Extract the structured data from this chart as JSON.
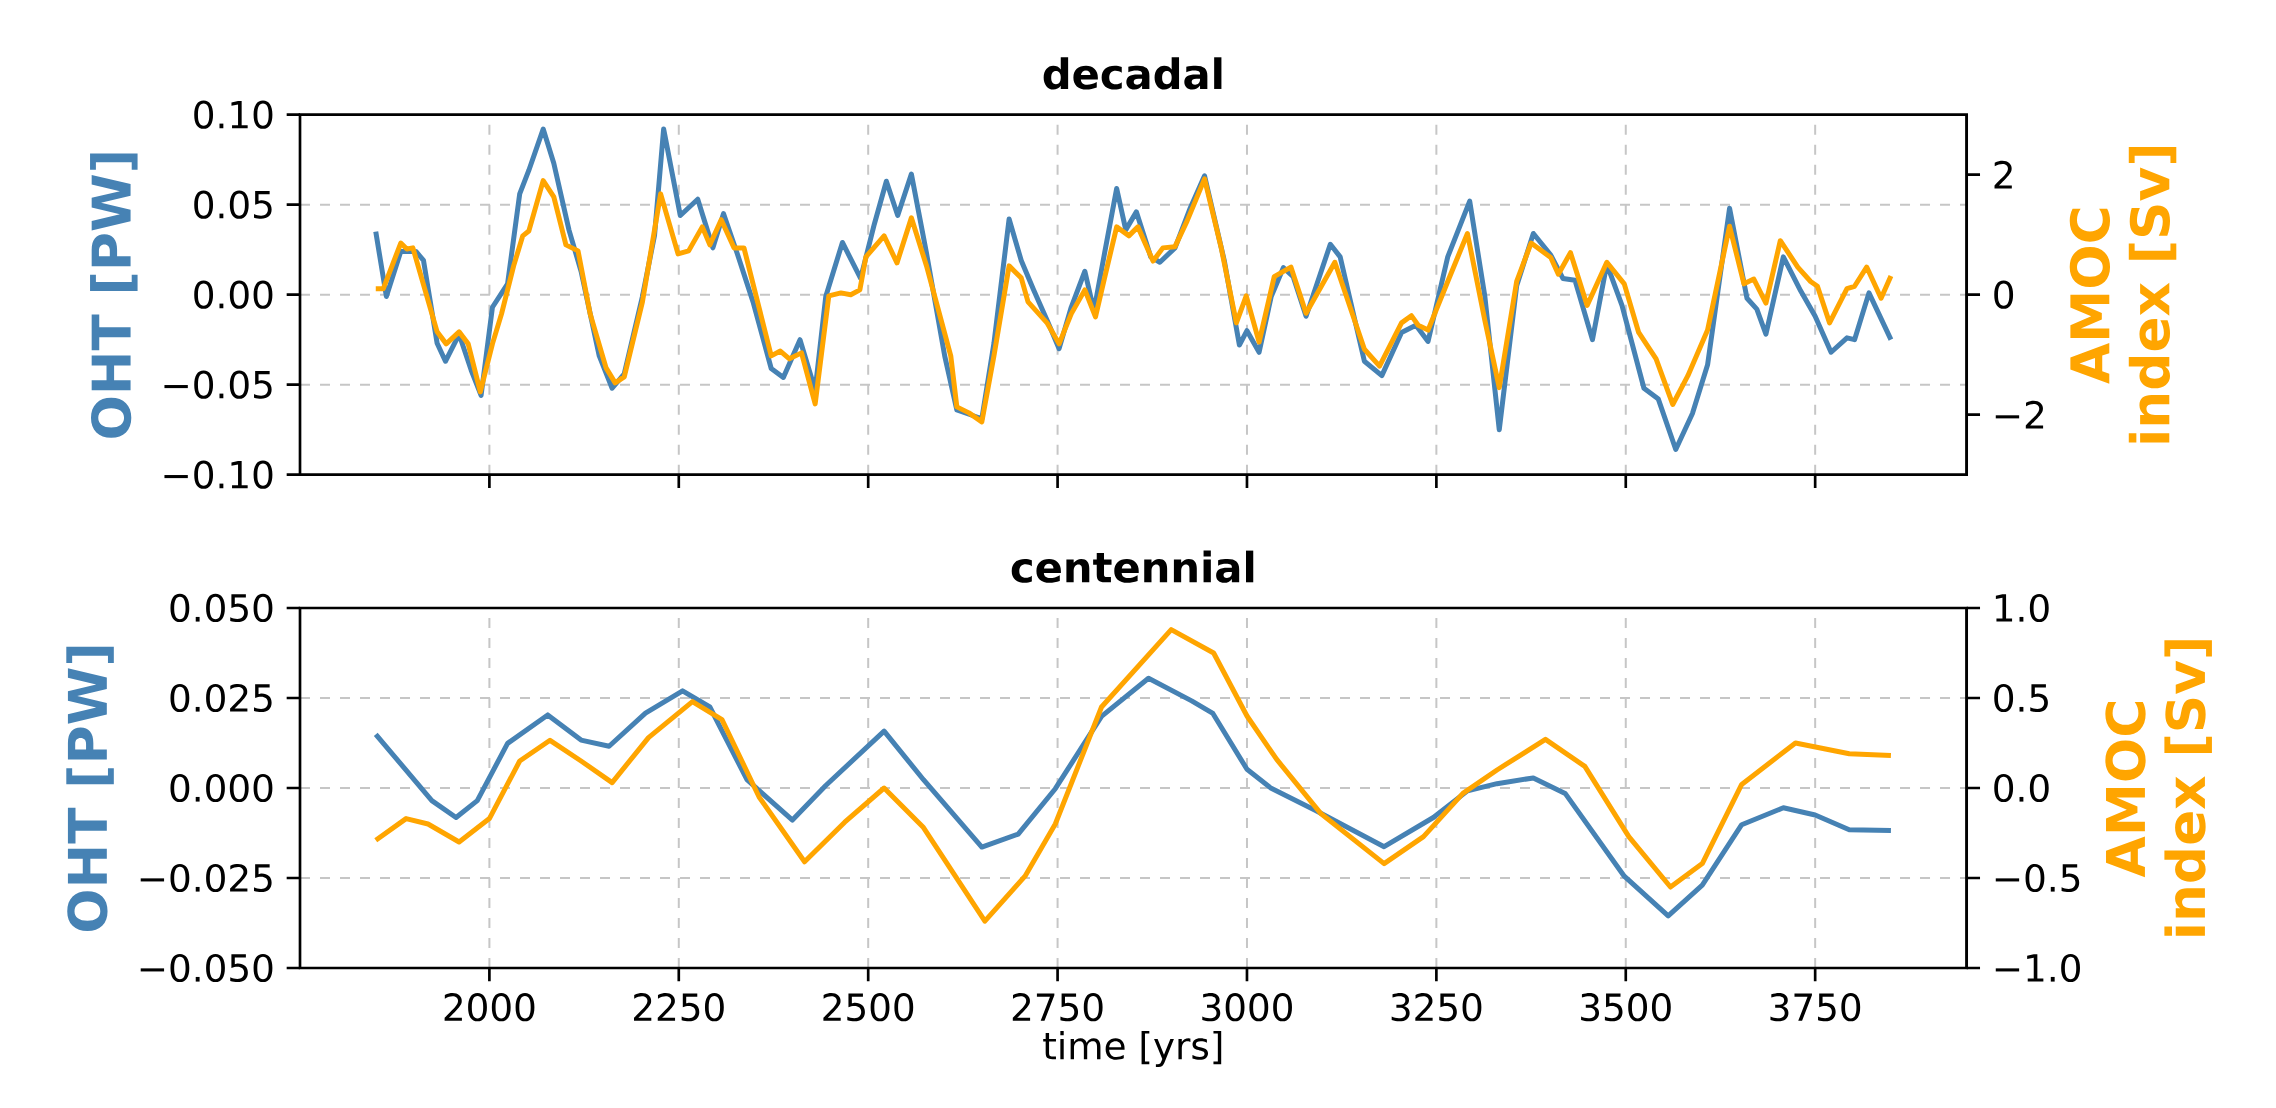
{
  "chart_data": [
    {
      "type": "line",
      "title": "decadal",
      "ylabel": "OHT [PW]",
      "y2label": "AMOC index [Sv]",
      "xlim": [
        1750,
        3950
      ],
      "xticks": [
        2000,
        2250,
        2500,
        2750,
        3000,
        3250,
        3500,
        3750
      ],
      "ylim": [
        -0.1,
        0.1
      ],
      "yticks": [
        {
          "value": -0.1,
          "label": "−0.10"
        },
        {
          "value": -0.05,
          "label": "−0.05"
        },
        {
          "value": 0,
          "label": "0.00"
        },
        {
          "value": 0.05,
          "label": "0.05"
        },
        {
          "value": 0.1,
          "label": "0.10"
        }
      ],
      "y2lim": [
        -3,
        3
      ],
      "y2ticks": [
        {
          "value": -2,
          "label": "−2"
        },
        0,
        2
      ],
      "grid": true,
      "tick_labels": "y",
      "series": [
        {
          "color": "#4682b4",
          "x": [
            1850,
            1864,
            1883,
            1903,
            1913,
            1931,
            1942,
            1960,
            1976,
            1989,
            2004,
            2024,
            2040,
            2052,
            2071,
            2085,
            2105,
            2121,
            2145,
            2162,
            2178,
            2202,
            2218,
            2230,
            2252,
            2275,
            2295,
            2309,
            2327,
            2348,
            2372,
            2388,
            2410,
            2430,
            2444,
            2466,
            2490,
            2508,
            2524,
            2539,
            2557,
            2577,
            2601,
            2617,
            2637,
            2650,
            2666,
            2686,
            2702,
            2718,
            2738,
            2752,
            2768,
            2786,
            2798,
            2812,
            2828,
            2840,
            2854,
            2873,
            2885,
            2905,
            2925,
            2944,
            2970,
            2990,
            3000,
            3016,
            3032,
            3048,
            3061,
            3078,
            3110,
            3123,
            3155,
            3178,
            3204,
            3223,
            3239,
            3265,
            3294,
            3314,
            3333,
            3356,
            3378,
            3401,
            3417,
            3433,
            3456,
            3475,
            3495,
            3524,
            3543,
            3566,
            3588,
            3608,
            3637,
            3660,
            3673,
            3685,
            3708,
            3731,
            3750,
            3771,
            3792,
            3802,
            3821,
            3850
          ],
          "values": [
            0.035,
            -0.001,
            0.024,
            0.024,
            0.019,
            -0.027,
            -0.037,
            -0.022,
            -0.042,
            -0.056,
            -0.007,
            0.006,
            0.056,
            0.069,
            0.092,
            0.073,
            0.036,
            0.013,
            -0.034,
            -0.052,
            -0.044,
            -0.001,
            0.033,
            0.092,
            0.044,
            0.053,
            0.026,
            0.045,
            0.023,
            -0.004,
            -0.041,
            -0.046,
            -0.025,
            -0.053,
            -0.001,
            0.029,
            0.009,
            0.039,
            0.063,
            0.044,
            0.067,
            0.023,
            -0.034,
            -0.064,
            -0.067,
            -0.069,
            -0.027,
            0.042,
            0.019,
            0.003,
            -0.016,
            -0.03,
            -0.007,
            0.013,
            -0.009,
            0.023,
            0.059,
            0.036,
            0.046,
            0.021,
            0.018,
            0.026,
            0.048,
            0.066,
            0.019,
            -0.028,
            -0.02,
            -0.032,
            -0.001,
            0.015,
            0.01,
            -0.012,
            0.028,
            0.021,
            -0.037,
            -0.045,
            -0.021,
            -0.017,
            -0.026,
            0.021,
            0.052,
            -0.001,
            -0.075,
            0.005,
            0.034,
            0.022,
            0.009,
            0.008,
            -0.025,
            0.017,
            -0.006,
            -0.052,
            -0.058,
            -0.086,
            -0.066,
            -0.039,
            0.048,
            -0.002,
            -0.008,
            -0.022,
            0.021,
            0.002,
            -0.012,
            -0.032,
            -0.024,
            -0.025,
            0.001,
            -0.025
          ]
        },
        {
          "color": "#ffa500",
          "axis": "y2",
          "x": [
            1850,
            1860,
            1883,
            1891,
            1899,
            1931,
            1943,
            1960,
            1972,
            1988,
            2004,
            2016,
            2032,
            2044,
            2052,
            2071,
            2085,
            2101,
            2117,
            2133,
            2154,
            2166,
            2178,
            2202,
            2226,
            2249,
            2263,
            2281,
            2291,
            2306,
            2323,
            2336,
            2356,
            2372,
            2384,
            2396,
            2412,
            2430,
            2448,
            2464,
            2477,
            2489,
            2497,
            2521,
            2538,
            2557,
            2577,
            2609,
            2617,
            2633,
            2650,
            2666,
            2686,
            2702,
            2711,
            2736,
            2752,
            2768,
            2786,
            2800,
            2812,
            2828,
            2844,
            2856,
            2876,
            2889,
            2905,
            2921,
            2944,
            2966,
            2986,
            2999,
            3016,
            3036,
            3058,
            3078,
            3116,
            3155,
            3175,
            3204,
            3217,
            3226,
            3239,
            3265,
            3291,
            3314,
            3333,
            3356,
            3375,
            3401,
            3411,
            3427,
            3449,
            3475,
            3498,
            3517,
            3540,
            3562,
            3582,
            3608,
            3637,
            3656,
            3669,
            3685,
            3704,
            3727,
            3744,
            3753,
            3769,
            3792,
            3802,
            3818,
            3837,
            3850
          ],
          "values": [
            0.1,
            0.1,
            0.86,
            0.76,
            0.78,
            -0.62,
            -0.82,
            -0.62,
            -0.82,
            -1.62,
            -0.82,
            -0.32,
            0.48,
            0.98,
            1.06,
            1.9,
            1.63,
            0.83,
            0.73,
            -0.32,
            -1.22,
            -1.47,
            -1.37,
            -0.12,
            1.68,
            0.68,
            0.73,
            1.13,
            0.83,
            1.25,
            0.78,
            0.78,
            -0.22,
            -1.02,
            -0.94,
            -1.07,
            -0.97,
            -1.82,
            -0.02,
            0.03,
            0,
            0.08,
            0.63,
            0.98,
            0.53,
            1.28,
            0.48,
            -1.02,
            -1.87,
            -1.97,
            -2.12,
            -1.02,
            0.48,
            0.28,
            -0.12,
            -0.47,
            -0.82,
            -0.32,
            0.08,
            -0.37,
            0.28,
            1.13,
            0.98,
            1.13,
            0.56,
            0.78,
            0.8,
            1.23,
            1.93,
            0.78,
            -0.47,
            -0.02,
            -0.79,
            0.3,
            0.46,
            -0.31,
            0.54,
            -0.91,
            -1.19,
            -0.47,
            -0.35,
            -0.51,
            -0.59,
            0.22,
            1.02,
            -0.43,
            -1.55,
            0.22,
            0.86,
            0.62,
            0.34,
            0.7,
            -0.18,
            0.54,
            0.18,
            -0.63,
            -1.07,
            -1.83,
            -1.35,
            -0.59,
            1.14,
            0.18,
            0.26,
            -0.14,
            0.9,
            0.46,
            0.22,
            0.14,
            -0.47,
            0.1,
            0.14,
            0.46,
            -0.06,
            0.31
          ]
        }
      ]
    },
    {
      "type": "line",
      "title": "centennial",
      "ylabel": "OHT [PW]",
      "y2label": "AMOC index [Sv]",
      "xlabel": "time [yrs]",
      "xlim": [
        1750,
        3950
      ],
      "xticks": [
        2000,
        2250,
        2500,
        2750,
        3000,
        3250,
        3500,
        3750
      ],
      "ylim": [
        -0.05,
        0.05
      ],
      "yticks": [
        {
          "value": -0.05,
          "label": "−0.050"
        },
        {
          "value": -0.025,
          "label": "−0.025"
        },
        {
          "value": 0,
          "label": "0.000"
        },
        {
          "value": 0.025,
          "label": "0.025"
        },
        {
          "value": 0.05,
          "label": "0.050"
        }
      ],
      "y2lim": [
        -1,
        1
      ],
      "y2ticks": [
        {
          "value": -1,
          "label": "−1.0"
        },
        {
          "value": -0.5,
          "label": "−0.5"
        },
        {
          "value": 0,
          "label": "0.0"
        },
        0.5,
        {
          "value": 1,
          "label": "1.0"
        }
      ],
      "grid": true,
      "series": [
        {
          "color": "#4682b4",
          "x": [
            1850,
            1887,
            1924,
            1956,
            1984,
            2024,
            2077,
            2121,
            2158,
            2206,
            2255,
            2291,
            2340,
            2400,
            2444,
            2521,
            2573,
            2650,
            2698,
            2747,
            2808,
            2870,
            2927,
            2955,
            3000,
            3032,
            3090,
            3181,
            3246,
            3291,
            3330,
            3378,
            3420,
            3498,
            3556,
            3601,
            3653,
            3708,
            3750,
            3795,
            3850
          ],
          "values": [
            0.0149,
            0.0057,
            -0.0035,
            -0.0082,
            -0.0035,
            0.0124,
            0.0203,
            0.0133,
            0.0116,
            0.0208,
            0.027,
            0.0225,
            0.0023,
            -0.0089,
            0.0007,
            0.0158,
            0.0023,
            -0.0164,
            -0.0128,
            -0.0002,
            0.0199,
            0.0305,
            0.0242,
            0.0207,
            0.0052,
            -0.0001,
            -0.0062,
            -0.0163,
            -0.0082,
            -0.0008,
            0.0012,
            0.0028,
            -0.0015,
            -0.0245,
            -0.0355,
            -0.027,
            -0.0102,
            -0.0055,
            -0.0075,
            -0.0116,
            -0.0118
          ]
        },
        {
          "color": "#ffa500",
          "axis": "y2",
          "x": [
            1850,
            1890,
            1919,
            1960,
            2000,
            2040,
            2080,
            2121,
            2162,
            2210,
            2268,
            2307,
            2356,
            2416,
            2469,
            2521,
            2573,
            2654,
            2707,
            2747,
            2808,
            2900,
            2956,
            3000,
            3039,
            3097,
            3181,
            3233,
            3285,
            3330,
            3394,
            3446,
            3504,
            3559,
            3601,
            3653,
            3724,
            3795,
            3850
          ],
          "values": [
            -0.29,
            -0.17,
            -0.2,
            -0.3,
            -0.17,
            0.15,
            0.265,
            0.15,
            0.03,
            0.28,
            0.48,
            0.38,
            -0.05,
            -0.41,
            -0.19,
            0,
            -0.22,
            -0.74,
            -0.49,
            -0.2,
            0.45,
            0.88,
            0.75,
            0.4,
            0.16,
            -0.14,
            -0.42,
            -0.27,
            -0.03,
            0.1,
            0.27,
            0.12,
            -0.27,
            -0.55,
            -0.42,
            0.02,
            0.25,
            0.19,
            0.18
          ]
        }
      ]
    }
  ]
}
